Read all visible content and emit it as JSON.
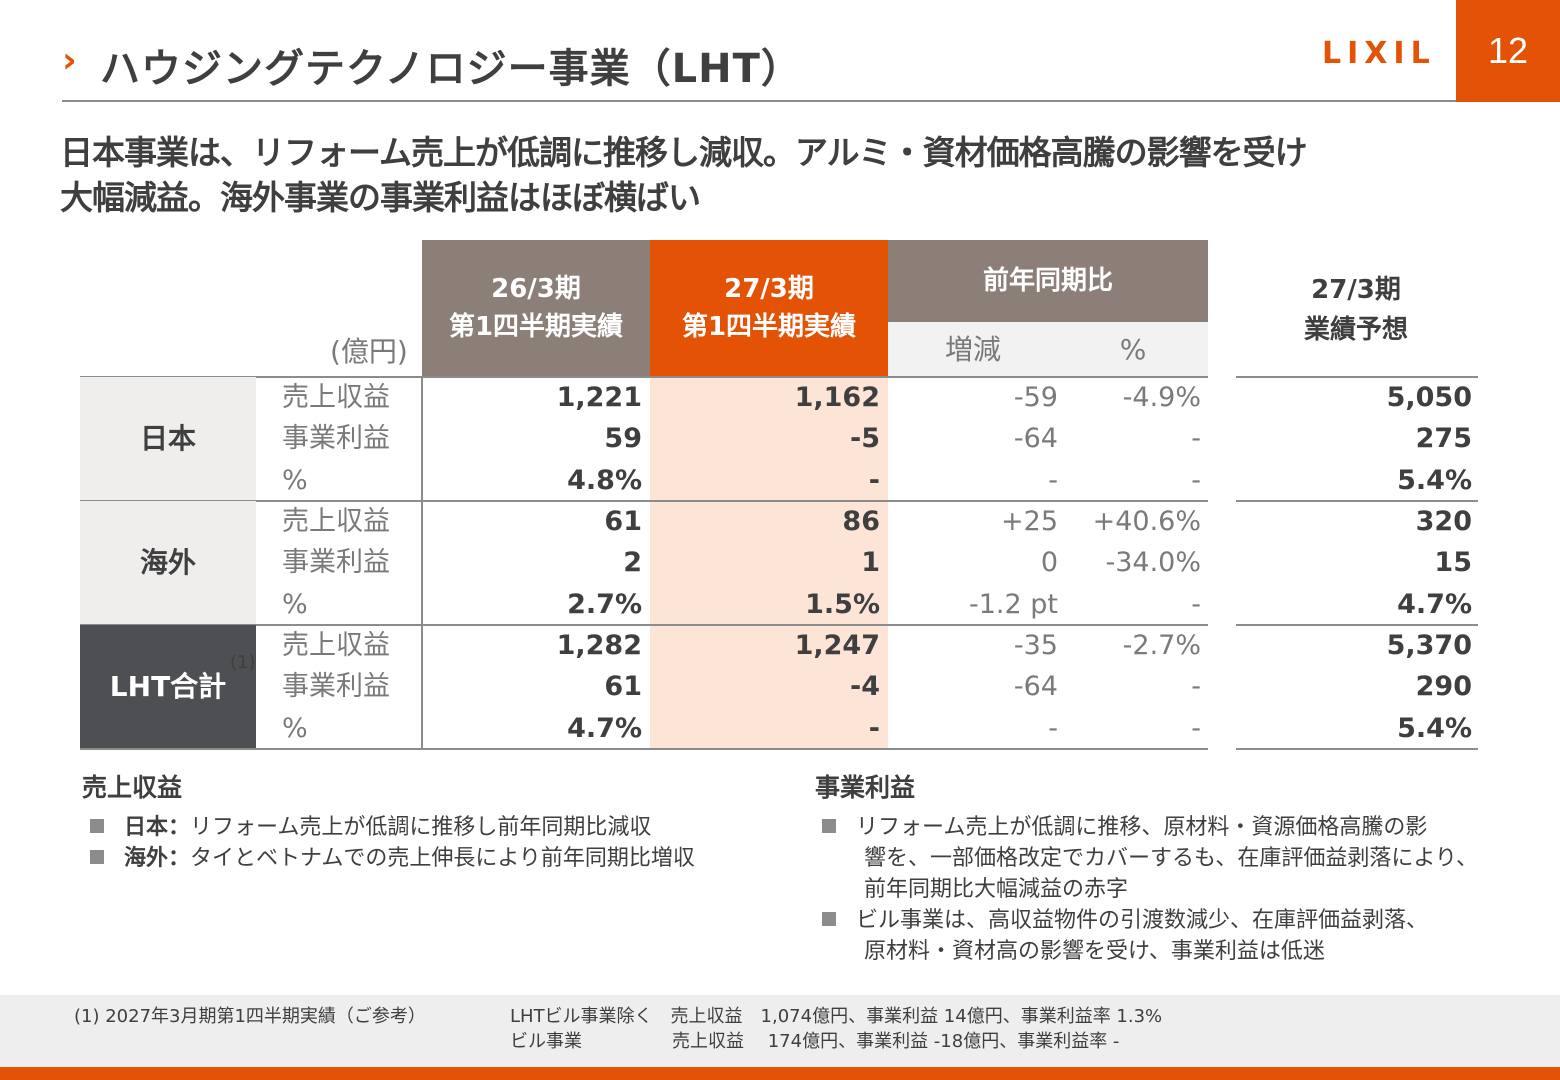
{
  "header": {
    "title": "ハウジングテクノロジー事業（LHT）",
    "logo_text": "LIXIL",
    "page_number": "12"
  },
  "headline": {
    "line1": "日本事業は、リフォーム売上が低調に推移し減収。アルミ・資材価格高騰の影響を受け",
    "line2": "大幅減益。海外事業の事業利益はほぼ横ばい"
  },
  "table": {
    "unit": "(億円)",
    "col_prev": [
      "26/3期",
      "第1四半期実績"
    ],
    "col_cur": [
      "27/3期",
      "第1四半期実績"
    ],
    "col_yoy": "前年同期比",
    "col_inc": "増減",
    "col_pct": "%",
    "col_forecast": [
      "27/3期",
      "業績予想"
    ],
    "segments": [
      {
        "name": "日本",
        "note": "",
        "rows": [
          {
            "item": "売上収益",
            "prev": "1,221",
            "cur": "1,162",
            "inc": "-59",
            "pct": "-4.9%",
            "fc": "5,050"
          },
          {
            "item": "事業利益",
            "prev": "59",
            "cur": "-5",
            "inc": "-64",
            "pct": "-",
            "fc": "275"
          },
          {
            "item": "%",
            "prev": "4.8%",
            "cur": "-",
            "inc": "-",
            "pct": "-",
            "fc": "5.4%"
          }
        ]
      },
      {
        "name": "海外",
        "note": "",
        "rows": [
          {
            "item": "売上収益",
            "prev": "61",
            "cur": "86",
            "inc": "+25",
            "pct": "+40.6%",
            "fc": "320"
          },
          {
            "item": "事業利益",
            "prev": "2",
            "cur": "1",
            "inc": "0",
            "pct": "-34.0%",
            "fc": "15"
          },
          {
            "item": "%",
            "prev": "2.7%",
            "cur": "1.5%",
            "inc": "-1.2 pt",
            "pct": "-",
            "fc": "4.7%"
          }
        ]
      },
      {
        "name": "LHT合計",
        "note": "(1)",
        "rows": [
          {
            "item": "売上収益",
            "prev": "1,282",
            "cur": "1,247",
            "inc": "-35",
            "pct": "-2.7%",
            "fc": "5,370"
          },
          {
            "item": "事業利益",
            "prev": "61",
            "cur": "-4",
            "inc": "-64",
            "pct": "-",
            "fc": "290"
          },
          {
            "item": "%",
            "prev": "4.7%",
            "cur": "-",
            "inc": "-",
            "pct": "-",
            "fc": "5.4%"
          }
        ]
      }
    ]
  },
  "revenue_section": {
    "title": "売上収益",
    "bullets": [
      {
        "label": "日本：",
        "text": "リフォーム売上が低調に推移し前年同期比減収"
      },
      {
        "label": "海外：",
        "text": "タイとベトナムでの売上伸長により前年同期比増収"
      }
    ]
  },
  "profit_section": {
    "title": "事業利益",
    "bullets": [
      {
        "lines": [
          "リフォーム売上が低調に推移、原材料・資源価格高騰の影",
          "響を、一部価格改定でカバーするも、在庫評価益剥落により、",
          "前年同期比大幅減益の赤字"
        ]
      },
      {
        "lines": [
          "ビル事業は、高収益物件の引渡数減少、在庫評価益剥落、",
          "原材料・資材高の影響を受け、事業利益は低迷"
        ]
      }
    ]
  },
  "footnote": {
    "label": "(1)  2027年3月期第1四半期実績（ご参考）",
    "row1": "LHTビル事業除く　売上収益　1,074億円、事業利益 14億円、事業利益率 1.3%",
    "row2": "ビル事業　　　　　売上収益　 174億円、事業利益 -18億円、事業利益率 -"
  },
  "colors": {
    "accent": "#e35205",
    "header_gray": "#8b7f78",
    "dark_cell": "#4d4f53",
    "highlight_col": "#fce4d6"
  }
}
